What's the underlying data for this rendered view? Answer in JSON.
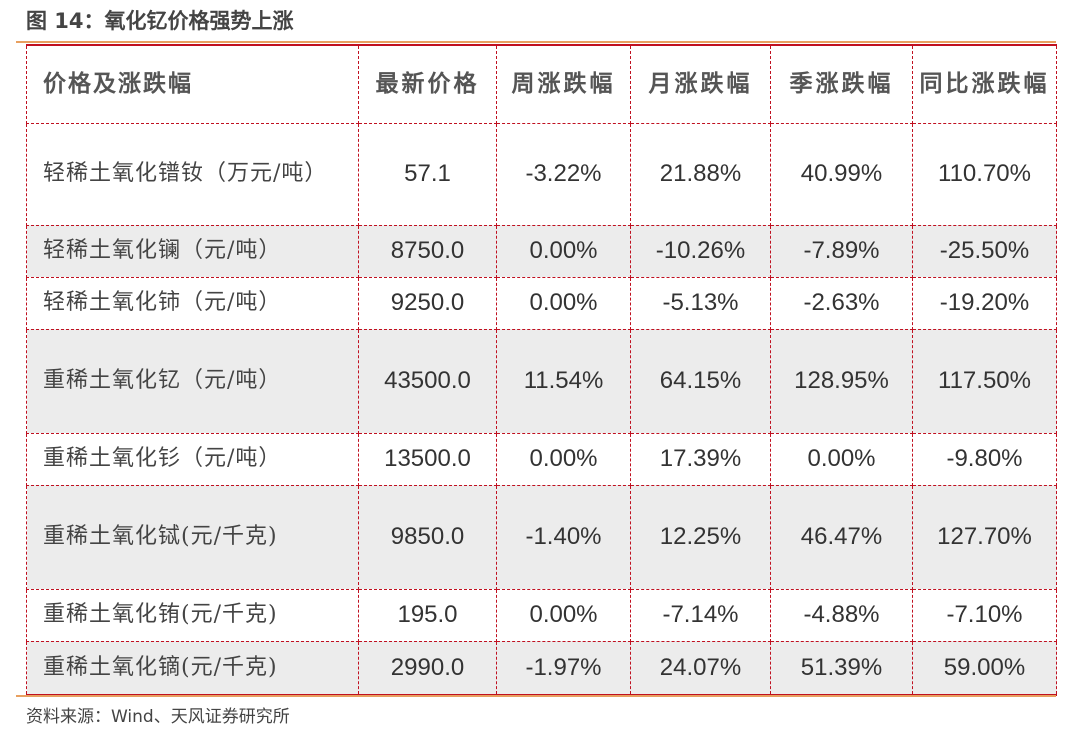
{
  "figure": {
    "title": "图 14：氧化钇价格强势上涨",
    "source": "资料来源：Wind、天风证券研究所"
  },
  "table": {
    "headers": [
      "价格及涨跌幅",
      "最新价格",
      "周涨跌幅",
      "月涨跌幅",
      "季涨跌幅",
      "同比涨跌幅"
    ],
    "rows": [
      {
        "name": "轻稀土氧化镨钕（万元/吨）",
        "price": "57.1",
        "week": "-3.22%",
        "month": "21.88%",
        "quarter": "40.99%",
        "yoy": "110.70%"
      },
      {
        "name": "轻稀土氧化镧（元/吨）",
        "price": "8750.0",
        "week": "0.00%",
        "month": "-10.26%",
        "quarter": "-7.89%",
        "yoy": "-25.50%"
      },
      {
        "name": "轻稀土氧化铈（元/吨）",
        "price": "9250.0",
        "week": "0.00%",
        "month": "-5.13%",
        "quarter": "-2.63%",
        "yoy": "-19.20%"
      },
      {
        "name": "重稀土氧化钇（元/吨）",
        "price": "43500.0",
        "week": "11.54%",
        "month": "64.15%",
        "quarter": "128.95%",
        "yoy": "117.50%"
      },
      {
        "name": "重稀土氧化钐（元/吨）",
        "price": "13500.0",
        "week": "0.00%",
        "month": "17.39%",
        "quarter": "0.00%",
        "yoy": "-9.80%"
      },
      {
        "name": "重稀土氧化铽(元/千克)",
        "price": "9850.0",
        "week": "-1.40%",
        "month": "12.25%",
        "quarter": "46.47%",
        "yoy": "127.70%"
      },
      {
        "name": "重稀土氧化铕(元/千克)",
        "price": "195.0",
        "week": "0.00%",
        "month": "-7.14%",
        "quarter": "-4.88%",
        "yoy": "-7.10%"
      },
      {
        "name": "重稀土氧化镝(元/千克)",
        "price": "2990.0",
        "week": "-1.97%",
        "month": "24.07%",
        "quarter": "51.39%",
        "yoy": "59.00%"
      }
    ]
  }
}
